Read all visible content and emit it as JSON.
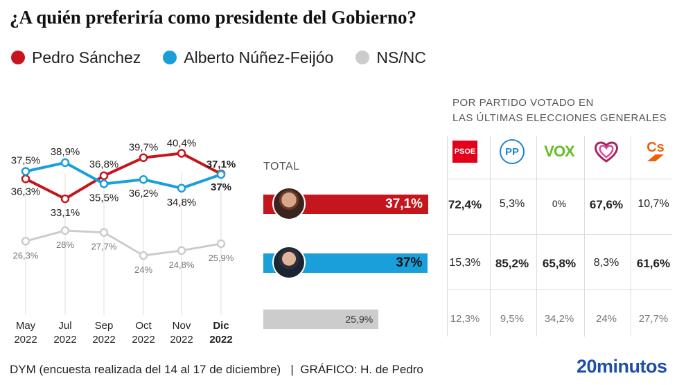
{
  "title": "¿A quién preferiría como presidente del Gobierno?",
  "legend": [
    {
      "label": "Pedro Sánchez",
      "color": "#c4161c"
    },
    {
      "label": "Alberto Núñez-Feijóo",
      "color": "#1a9fdb"
    },
    {
      "label": "NS/NC",
      "color": "#cccccc"
    }
  ],
  "chart_data": [
    {
      "type": "line",
      "categories": [
        {
          "month": "May",
          "year": "2022"
        },
        {
          "month": "Jul",
          "year": "2022"
        },
        {
          "month": "Sep",
          "year": "2022"
        },
        {
          "month": "Oct",
          "year": "2022"
        },
        {
          "month": "Nov",
          "year": "2022"
        },
        {
          "month": "Dic",
          "year": "2022"
        }
      ],
      "ylim": [
        20,
        45
      ],
      "series": [
        {
          "name": "Pedro Sánchez",
          "color": "#c4161c",
          "values": [
            36.3,
            33.1,
            36.8,
            39.7,
            40.4,
            37.1
          ],
          "labels": [
            "36,3%",
            "33,1%",
            "36,8%",
            "39,7%",
            "40,4%",
            "37,1%"
          ]
        },
        {
          "name": "Alberto Núñez-Feijóo",
          "color": "#1a9fdb",
          "values": [
            37.5,
            38.9,
            35.5,
            36.2,
            34.8,
            37.0
          ],
          "labels": [
            "37,5%",
            "38,9%",
            "35,5%",
            "36,2%",
            "34,8%",
            "37%"
          ]
        },
        {
          "name": "NS/NC",
          "color": "#cccccc",
          "values": [
            26.3,
            28.0,
            27.7,
            24.0,
            24.8,
            25.9
          ],
          "labels": [
            "26,3%",
            "28%",
            "27,7%",
            "24%",
            "24,8%",
            "25,9%"
          ]
        }
      ]
    },
    {
      "type": "bar",
      "title": "TOTAL",
      "xlim": [
        0,
        100
      ],
      "values": [
        37.1,
        37.0,
        25.9
      ],
      "labels": [
        "37,1%",
        "37%",
        "25,9%"
      ],
      "colors": [
        "#c4161c",
        "#1a9fdb",
        "#cccccc"
      ]
    },
    {
      "type": "table",
      "title": "POR PARTIDO VOTADO EN LAS ÚLTIMAS ELECCIONES GENERALES",
      "columns": [
        "PSOE",
        "PP",
        "VOX",
        "Podemos",
        "Cs"
      ],
      "rows": [
        {
          "name": "Pedro Sánchez",
          "cells": [
            {
              "v": "72,4%",
              "bold": true
            },
            {
              "v": "5,3%",
              "bold": false
            },
            {
              "v": "0%",
              "bold": false,
              "small": true
            },
            {
              "v": "67,6%",
              "bold": true
            },
            {
              "v": "10,7%",
              "bold": false
            }
          ]
        },
        {
          "name": "Alberto Núñez-Feijóo",
          "cells": [
            {
              "v": "15,3%",
              "bold": false
            },
            {
              "v": "85,2%",
              "bold": true
            },
            {
              "v": "65,8%",
              "bold": true
            },
            {
              "v": "8,3%",
              "bold": false
            },
            {
              "v": "61,6%",
              "bold": true
            }
          ]
        },
        {
          "name": "NS/NC",
          "cells": [
            {
              "v": "12,3%",
              "grey": true
            },
            {
              "v": "9,5%",
              "grey": true
            },
            {
              "v": "34,2%",
              "grey": true
            },
            {
              "v": "24%",
              "grey": true
            },
            {
              "v": "27,7%",
              "grey": true
            }
          ]
        }
      ]
    }
  ],
  "party_logos": {
    "psoe": {
      "text": "PSOE",
      "color": "#e2001a"
    },
    "pp": {
      "text": "PP",
      "color": "#1d84ce"
    },
    "vox": {
      "text": "VOX",
      "color": "#63be21"
    },
    "podemos": {
      "color": "#a3265f"
    },
    "cs": {
      "text": "Cs",
      "color": "#eb6109"
    }
  },
  "footer": {
    "source": "DYM (encuesta realizada del 14 al 17 de diciembre)   |  GRÁFICO: H. de Pedro",
    "brand": "20minutos"
  }
}
